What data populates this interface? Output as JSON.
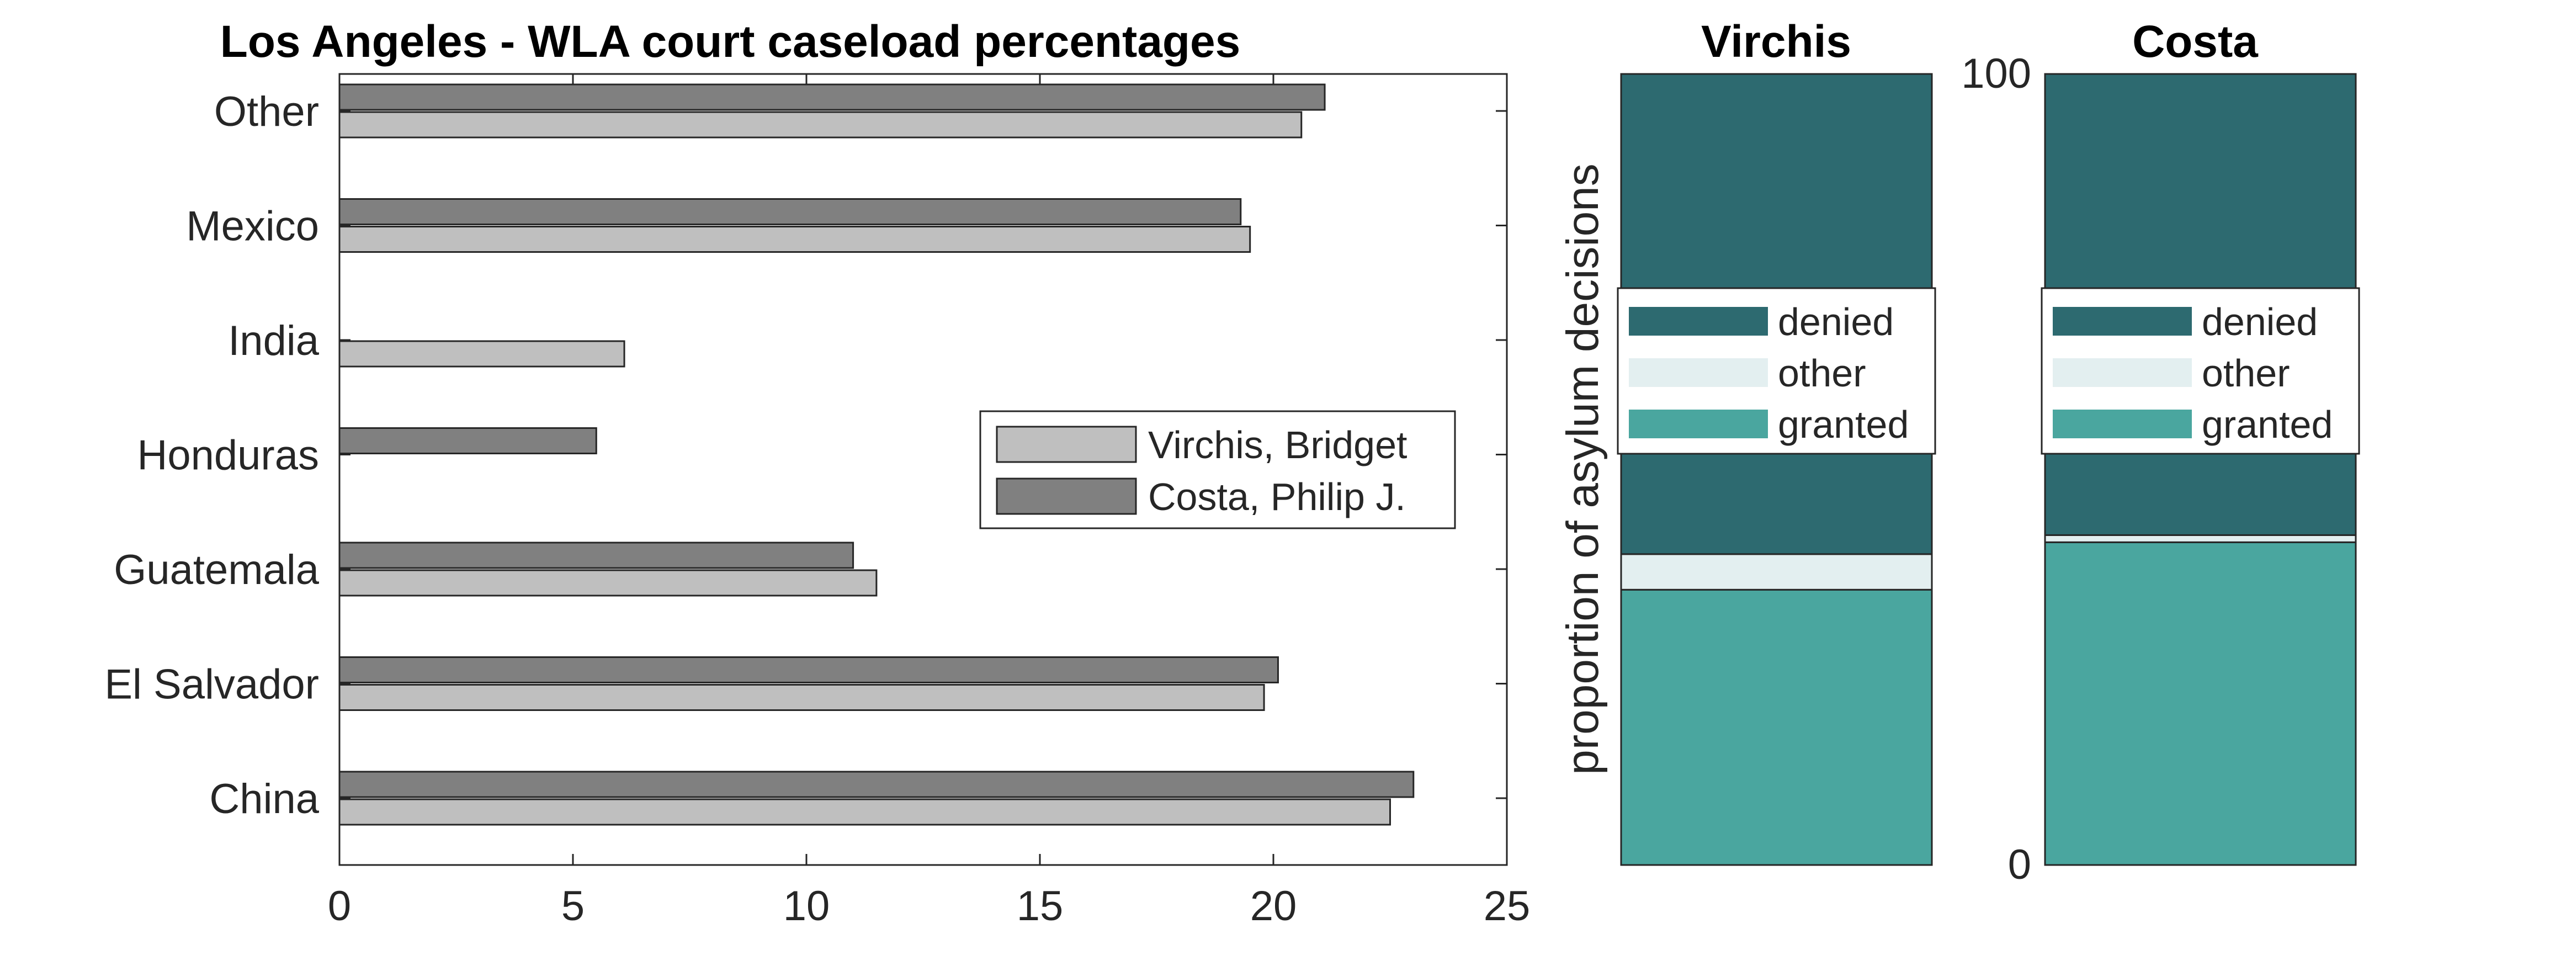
{
  "chart_data": [
    {
      "type": "bar",
      "orientation": "horizontal",
      "title": "Los Angeles - WLA court caseload percentages",
      "xlabel": "",
      "ylabel": "",
      "categories": [
        "China",
        "El Salvador",
        "Guatemala",
        "Honduras",
        "India",
        "Mexico",
        "Other"
      ],
      "series": [
        {
          "name": "Virchis, Bridget",
          "color": "#bfbfbf",
          "values": [
            22.5,
            19.8,
            11.5,
            0,
            6.1,
            19.5,
            20.6
          ]
        },
        {
          "name": "Costa, Philip J.",
          "color": "#808080",
          "values": [
            23.0,
            20.1,
            11.0,
            5.5,
            0,
            19.3,
            21.1
          ]
        }
      ],
      "xlim": [
        0,
        25
      ],
      "xticks": [
        0,
        5,
        10,
        15,
        20,
        25
      ],
      "legend_position": "right-center",
      "grid": false
    },
    {
      "type": "bar",
      "stacked": true,
      "title": "Virchis",
      "ylabel": "proportion of asylum decisions",
      "ylim": [
        0,
        100
      ],
      "segments": [
        {
          "name": "granted",
          "color": "#4aa69f",
          "value": 34.8
        },
        {
          "name": "other",
          "color": "#e3eff0",
          "value": 4.5
        },
        {
          "name": "denied",
          "color": "#2d6a70",
          "value": 60.7
        }
      ],
      "legend_order": [
        "denied",
        "other",
        "granted"
      ],
      "legend_position": "center"
    },
    {
      "type": "bar",
      "stacked": true,
      "title": "Costa",
      "ylim": [
        0,
        100
      ],
      "yticks": [
        0,
        100
      ],
      "segments": [
        {
          "name": "granted",
          "color": "#4aa69f",
          "value": 40.8
        },
        {
          "name": "other",
          "color": "#e3eff0",
          "value": 0.9
        },
        {
          "name": "denied",
          "color": "#2d6a70",
          "value": 58.3
        }
      ],
      "legend_order": [
        "denied",
        "other",
        "granted"
      ],
      "legend_position": "center"
    }
  ]
}
